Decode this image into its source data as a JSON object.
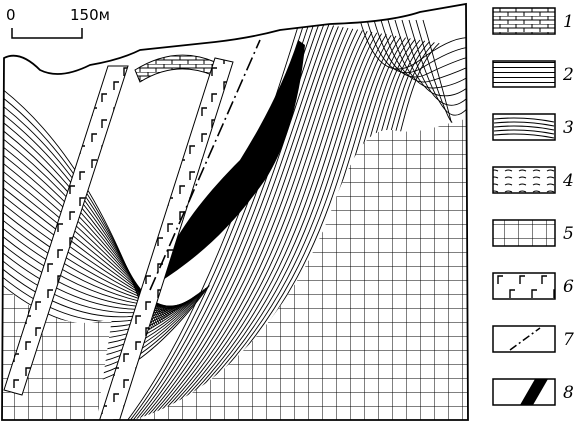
{
  "scale": {
    "zero": "0",
    "label": "150м"
  },
  "legend": {
    "items": [
      {
        "label": "1"
      },
      {
        "label": "2"
      },
      {
        "label": "3"
      },
      {
        "label": "4"
      },
      {
        "label": "5"
      },
      {
        "label": "6"
      },
      {
        "label": "7"
      },
      {
        "label": "8"
      }
    ]
  }
}
